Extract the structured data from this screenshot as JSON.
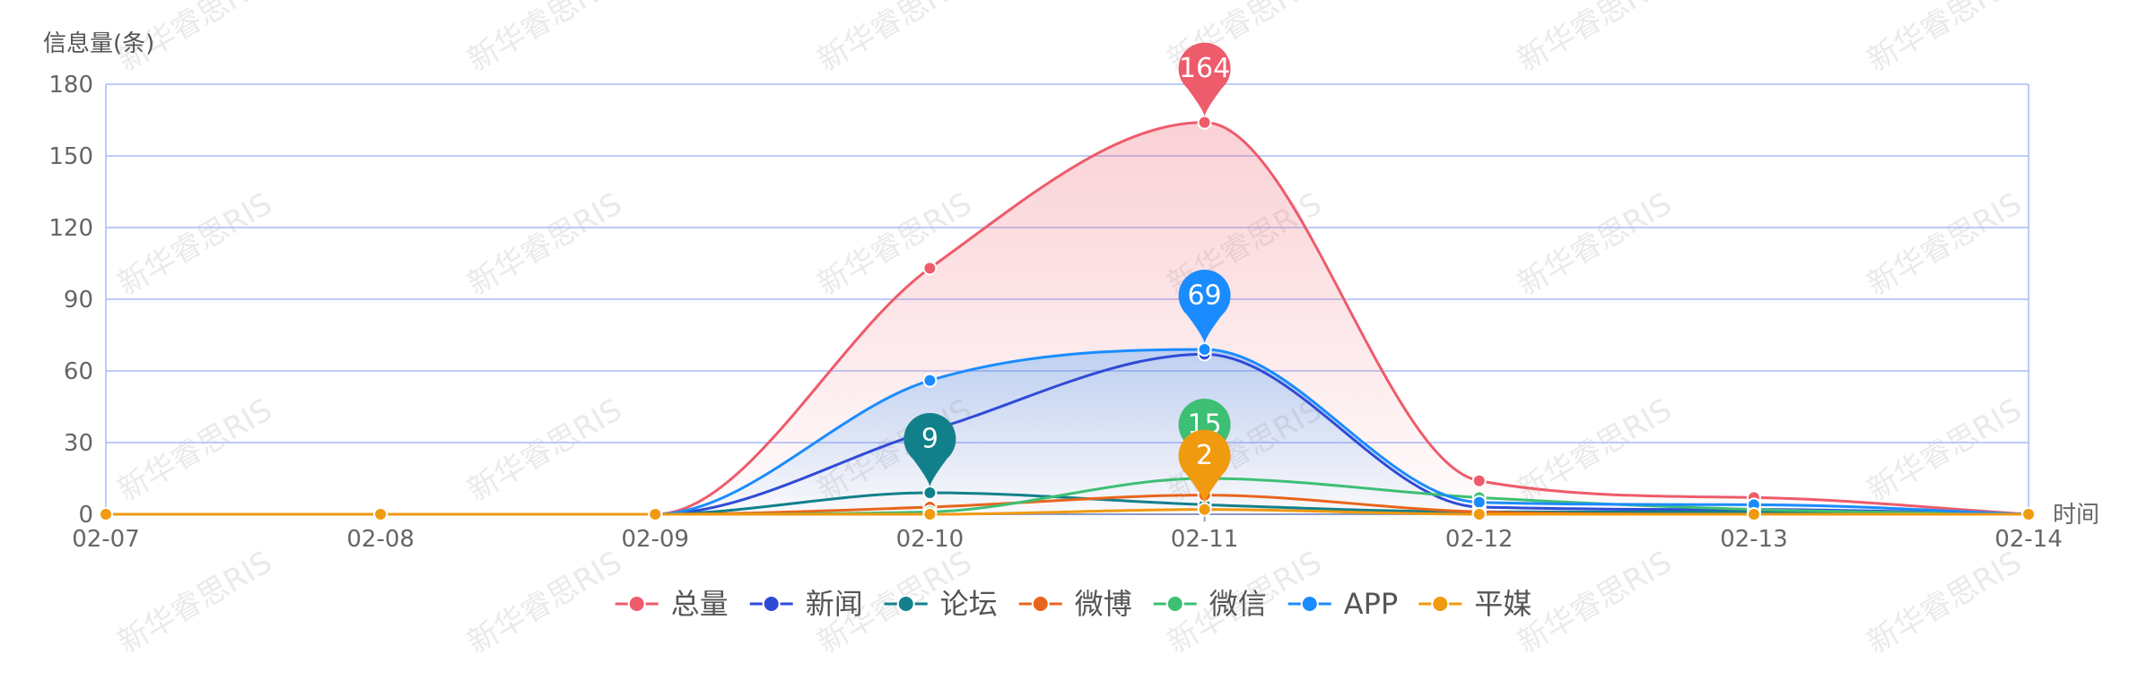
{
  "chart_data": {
    "type": "line",
    "ylabel": "信息量(条)",
    "xlabel": "时间",
    "categories": [
      "02-07",
      "02-08",
      "02-09",
      "02-10",
      "02-11",
      "02-12",
      "02-13",
      "02-14"
    ],
    "y_ticks": [
      0,
      30,
      60,
      90,
      120,
      150,
      180
    ],
    "ylim": [
      0,
      180
    ],
    "grid": true,
    "legend_position": "bottom",
    "series": [
      {
        "name": "总量",
        "color": "#ee5b6b",
        "area": true,
        "values": [
          0,
          0,
          0,
          103,
          164,
          14,
          7,
          0
        ]
      },
      {
        "name": "新闻",
        "color": "#2f4bd6",
        "area": false,
        "values": [
          0,
          0,
          0,
          35,
          67,
          3,
          2,
          0
        ]
      },
      {
        "name": "论坛",
        "color": "#12808a",
        "area": false,
        "values": [
          0,
          0,
          0,
          9,
          4,
          1,
          1,
          0
        ]
      },
      {
        "name": "微博",
        "color": "#e8651c",
        "area": false,
        "values": [
          0,
          0,
          0,
          3,
          8,
          1,
          0,
          0
        ]
      },
      {
        "name": "微信",
        "color": "#3dbf74",
        "area": false,
        "values": [
          0,
          0,
          0,
          1,
          15,
          7,
          2,
          0
        ]
      },
      {
        "name": "APP",
        "color": "#1a8cff",
        "area": true,
        "values": [
          0,
          0,
          0,
          56,
          69,
          5,
          4,
          0
        ]
      },
      {
        "name": "平媒",
        "color": "#f09a0f",
        "area": false,
        "values": [
          0,
          0,
          0,
          0,
          2,
          0,
          0,
          0
        ]
      }
    ],
    "annotations": [
      {
        "series": "总量",
        "category": "02-11",
        "value": 164,
        "label": "164"
      },
      {
        "series": "APP",
        "category": "02-11",
        "value": 69,
        "label": "69"
      },
      {
        "series": "论坛",
        "category": "02-10",
        "value": 9,
        "label": "9"
      },
      {
        "series": "微信",
        "category": "02-11",
        "value": 15,
        "label": "15"
      },
      {
        "series": "平媒",
        "category": "02-11",
        "value": 2,
        "label": "2"
      }
    ],
    "watermark_text": "新华睿思RIS"
  }
}
